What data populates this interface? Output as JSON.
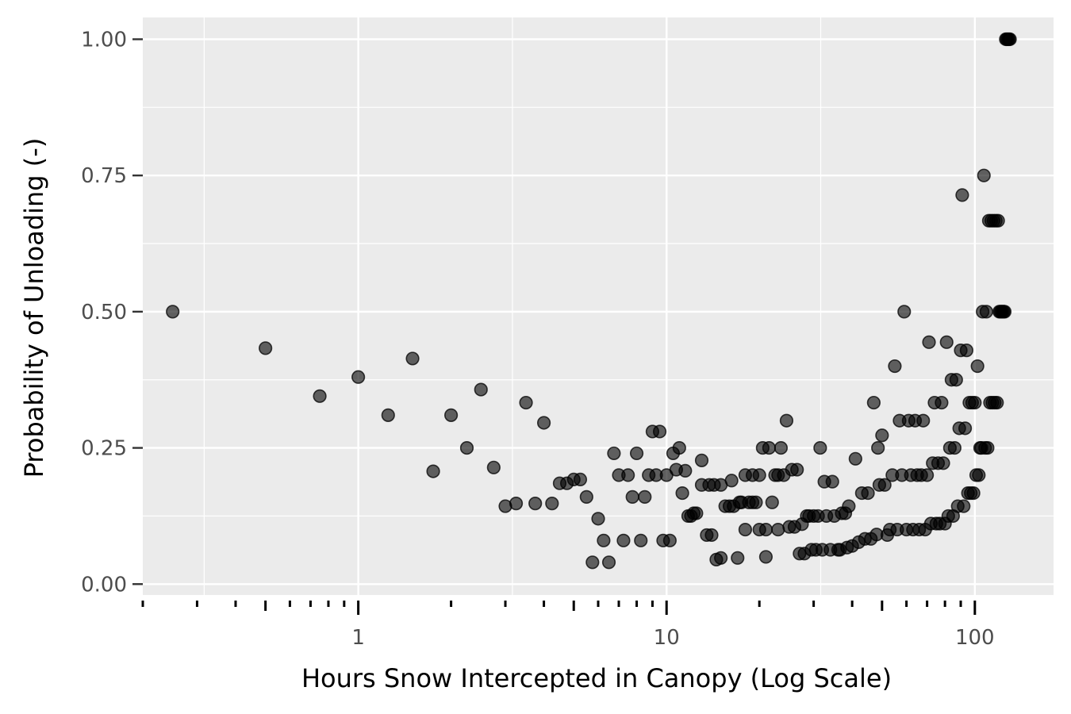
{
  "chart_data": {
    "type": "scatter",
    "title": "",
    "xlabel": "Hours Snow Intercepted in Canopy (Log Scale)",
    "ylabel": "Probability of Unloading (-)",
    "x_scale": "log10",
    "xlim": [
      0.2,
      180
    ],
    "ylim": [
      -0.02,
      1.04
    ],
    "x_ticks": [
      {
        "value": 1,
        "label": "1"
      },
      {
        "value": 10,
        "label": "10"
      },
      {
        "value": 100,
        "label": "100"
      }
    ],
    "y_ticks": [
      {
        "value": 0,
        "label": "0.00"
      },
      {
        "value": 0.25,
        "label": "0.25"
      },
      {
        "value": 0.5,
        "label": "0.50"
      },
      {
        "value": 0.75,
        "label": "0.75"
      },
      {
        "value": 1,
        "label": "1.00"
      }
    ],
    "grid": true,
    "legend": "none",
    "background": "#ebebeb",
    "gridline_color": "#ffffff",
    "point_color": "#000000",
    "point_opacity": 0.6,
    "points": [
      [
        0.25,
        0.5
      ],
      [
        0.5,
        0.433
      ],
      [
        0.75,
        0.345
      ],
      [
        1.0,
        0.38
      ],
      [
        1.25,
        0.31
      ],
      [
        1.5,
        0.414
      ],
      [
        1.75,
        0.207
      ],
      [
        2.0,
        0.31
      ],
      [
        2.25,
        0.25
      ],
      [
        2.5,
        0.357
      ],
      [
        2.75,
        0.214
      ],
      [
        3.0,
        0.143
      ],
      [
        3.25,
        0.148
      ],
      [
        3.5,
        0.333
      ],
      [
        3.75,
        0.148
      ],
      [
        4.0,
        0.296
      ],
      [
        4.25,
        0.148
      ],
      [
        4.5,
        0.185
      ],
      [
        4.75,
        0.185
      ],
      [
        5.0,
        0.192
      ],
      [
        5.25,
        0.192
      ],
      [
        5.5,
        0.16
      ],
      [
        5.75,
        0.04
      ],
      [
        6.0,
        0.12
      ],
      [
        6.25,
        0.08
      ],
      [
        6.5,
        0.04
      ],
      [
        6.75,
        0.24
      ],
      [
        7.0,
        0.2
      ],
      [
        7.25,
        0.08
      ],
      [
        7.5,
        0.2
      ],
      [
        7.75,
        0.16
      ],
      [
        8.0,
        0.24
      ],
      [
        8.25,
        0.08
      ],
      [
        8.5,
        0.16
      ],
      [
        8.75,
        0.2
      ],
      [
        9.0,
        0.28
      ],
      [
        9.25,
        0.2
      ],
      [
        9.5,
        0.28
      ],
      [
        9.75,
        0.08
      ],
      [
        10.0,
        0.2
      ],
      [
        10.25,
        0.08
      ],
      [
        10.5,
        0.24
      ],
      [
        10.75,
        0.21
      ],
      [
        11.0,
        0.25
      ],
      [
        11.25,
        0.167
      ],
      [
        11.5,
        0.208
      ],
      [
        11.75,
        0.125
      ],
      [
        12.0,
        0.125
      ],
      [
        12.25,
        0.13
      ],
      [
        12.5,
        0.13
      ],
      [
        13.0,
        0.182
      ],
      [
        13.0,
        0.227
      ],
      [
        13.5,
        0.09
      ],
      [
        13.75,
        0.182
      ],
      [
        14.0,
        0.09
      ],
      [
        14.25,
        0.182
      ],
      [
        14.5,
        0.045
      ],
      [
        15.0,
        0.182
      ],
      [
        15.0,
        0.048
      ],
      [
        15.5,
        0.143
      ],
      [
        16.0,
        0.143
      ],
      [
        16.25,
        0.19
      ],
      [
        16.5,
        0.143
      ],
      [
        17.0,
        0.048
      ],
      [
        17.25,
        0.15
      ],
      [
        17.5,
        0.15
      ],
      [
        18.0,
        0.2
      ],
      [
        18.0,
        0.1
      ],
      [
        18.5,
        0.15
      ],
      [
        19.0,
        0.2
      ],
      [
        19.0,
        0.15
      ],
      [
        19.5,
        0.15
      ],
      [
        20.0,
        0.2
      ],
      [
        20.0,
        0.1
      ],
      [
        20.5,
        0.25
      ],
      [
        21.0,
        0.1
      ],
      [
        21.0,
        0.05
      ],
      [
        21.5,
        0.25
      ],
      [
        22.0,
        0.15
      ],
      [
        22.5,
        0.2
      ],
      [
        23.0,
        0.1
      ],
      [
        23.0,
        0.2
      ],
      [
        23.5,
        0.25
      ],
      [
        24.0,
        0.2
      ],
      [
        24.5,
        0.3
      ],
      [
        25.0,
        0.105
      ],
      [
        25.5,
        0.21
      ],
      [
        26.0,
        0.105
      ],
      [
        26.5,
        0.21
      ],
      [
        27.0,
        0.056
      ],
      [
        27.5,
        0.11
      ],
      [
        28.0,
        0.056
      ],
      [
        28.5,
        0.125
      ],
      [
        29.0,
        0.125
      ],
      [
        29.5,
        0.063
      ],
      [
        30.0,
        0.125
      ],
      [
        30.5,
        0.063
      ],
      [
        31.0,
        0.125
      ],
      [
        31.5,
        0.25
      ],
      [
        32.0,
        0.063
      ],
      [
        32.5,
        0.188
      ],
      [
        33.0,
        0.125
      ],
      [
        34.0,
        0.063
      ],
      [
        34.5,
        0.188
      ],
      [
        35.0,
        0.125
      ],
      [
        36.0,
        0.063
      ],
      [
        36.5,
        0.063
      ],
      [
        37.0,
        0.13
      ],
      [
        38.0,
        0.13
      ],
      [
        38.5,
        0.067
      ],
      [
        39.0,
        0.143
      ],
      [
        40.0,
        0.07
      ],
      [
        41.0,
        0.23
      ],
      [
        42.0,
        0.077
      ],
      [
        43.0,
        0.167
      ],
      [
        44.0,
        0.083
      ],
      [
        45.0,
        0.167
      ],
      [
        46.0,
        0.083
      ],
      [
        47.0,
        0.333
      ],
      [
        48.0,
        0.091
      ],
      [
        48.5,
        0.25
      ],
      [
        49.0,
        0.182
      ],
      [
        50.0,
        0.273
      ],
      [
        51.0,
        0.182
      ],
      [
        52.0,
        0.09
      ],
      [
        53.0,
        0.1
      ],
      [
        54.0,
        0.2
      ],
      [
        55.0,
        0.4
      ],
      [
        56.0,
        0.1
      ],
      [
        57.0,
        0.3
      ],
      [
        58.0,
        0.2
      ],
      [
        59.0,
        0.5
      ],
      [
        60.0,
        0.1
      ],
      [
        61.0,
        0.3
      ],
      [
        62.0,
        0.2
      ],
      [
        63.0,
        0.1
      ],
      [
        64.0,
        0.3
      ],
      [
        65.0,
        0.2
      ],
      [
        66.0,
        0.1
      ],
      [
        67.0,
        0.2
      ],
      [
        68.0,
        0.3
      ],
      [
        69.0,
        0.1
      ],
      [
        70.0,
        0.2
      ],
      [
        71.0,
        0.444
      ],
      [
        72.0,
        0.111
      ],
      [
        73.0,
        0.222
      ],
      [
        74.0,
        0.333
      ],
      [
        75.0,
        0.111
      ],
      [
        76.0,
        0.222
      ],
      [
        77.0,
        0.111
      ],
      [
        78.0,
        0.333
      ],
      [
        79.0,
        0.222
      ],
      [
        80.0,
        0.111
      ],
      [
        81.0,
        0.444
      ],
      [
        82.0,
        0.125
      ],
      [
        83.0,
        0.25
      ],
      [
        84.0,
        0.375
      ],
      [
        85.0,
        0.125
      ],
      [
        86.0,
        0.25
      ],
      [
        87.0,
        0.375
      ],
      [
        88.0,
        0.143
      ],
      [
        89.0,
        0.286
      ],
      [
        90.0,
        0.429
      ],
      [
        91.0,
        0.714
      ],
      [
        92.0,
        0.143
      ],
      [
        93.0,
        0.286
      ],
      [
        94.0,
        0.429
      ],
      [
        95.0,
        0.167
      ],
      [
        96.0,
        0.333
      ],
      [
        97.0,
        0.167
      ],
      [
        98.0,
        0.333
      ],
      [
        99.0,
        0.167
      ],
      [
        100.0,
        0.333
      ],
      [
        101.0,
        0.2
      ],
      [
        102.0,
        0.4
      ],
      [
        103.0,
        0.2
      ],
      [
        104.0,
        0.25
      ],
      [
        105.0,
        0.25
      ],
      [
        106.0,
        0.5
      ],
      [
        107.0,
        0.75
      ],
      [
        108.0,
        0.25
      ],
      [
        109.0,
        0.5
      ],
      [
        110.0,
        0.25
      ],
      [
        111.0,
        0.667
      ],
      [
        112.0,
        0.333
      ],
      [
        113.0,
        0.667
      ],
      [
        114.0,
        0.333
      ],
      [
        115.0,
        0.667
      ],
      [
        116.0,
        0.333
      ],
      [
        117.0,
        0.667
      ],
      [
        118.0,
        0.333
      ],
      [
        119.0,
        0.667
      ],
      [
        120.0,
        0.5
      ],
      [
        121.0,
        0.5
      ],
      [
        122.0,
        0.5
      ],
      [
        123.0,
        0.5
      ],
      [
        124.0,
        0.5
      ],
      [
        125.0,
        0.5
      ],
      [
        126.0,
        1.0
      ],
      [
        127.0,
        1.0
      ],
      [
        128.0,
        1.0
      ],
      [
        129.0,
        1.0
      ],
      [
        130.0,
        1.0
      ]
    ]
  }
}
